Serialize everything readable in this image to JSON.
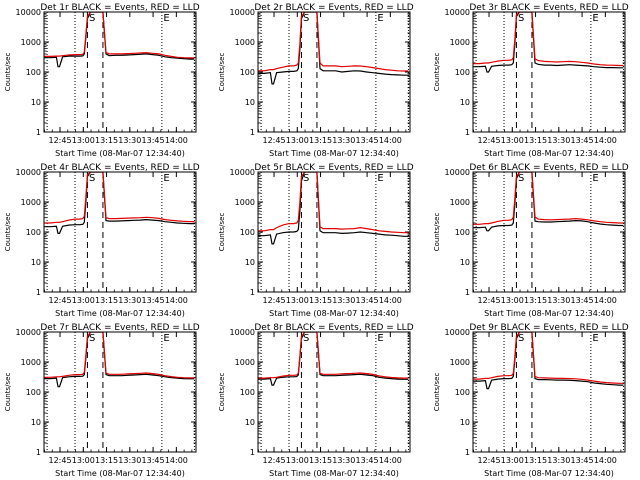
{
  "colors": {
    "events": "#000000",
    "lld": "#e00000",
    "frame": "#000000"
  },
  "panels": [
    {
      "title": "Det 1r BLACK = Events, RED = LLD",
      "ylabel": "Counts/sec",
      "xlabel": "Start Time (08-Mar-07 12:34:40)"
    },
    {
      "title": "Det 2r BLACK = Events, RED = LLD",
      "ylabel": "Counts/sec",
      "xlabel": "Start Time (08-Mar-07 12:34:40)"
    },
    {
      "title": "Det 3r BLACK = Events, RED = LLD",
      "ylabel": "Counts/sec",
      "xlabel": "Start Time (08-Mar-07 12:34:40)"
    },
    {
      "title": "Det 4r BLACK = Events, RED = LLD",
      "ylabel": "Counts/sec",
      "xlabel": "Start Time (08-Mar-07 12:34:40)"
    },
    {
      "title": "Det 5r BLACK = Events, RED = LLD",
      "ylabel": "Counts/sec",
      "xlabel": "Start Time (08-Mar-07 12:34:40)"
    },
    {
      "title": "Det 6r BLACK = Events, RED = LLD",
      "ylabel": "Counts/sec",
      "xlabel": "Start Time (08-Mar-07 12:34:40)"
    },
    {
      "title": "Det 7r BLACK = Events, RED = LLD",
      "ylabel": "Counts/sec",
      "xlabel": "Start Time (08-Mar-07 12:34:40)"
    },
    {
      "title": "Det 8r BLACK = Events, RED = LLD",
      "ylabel": "Counts/sec",
      "xlabel": "Start Time (08-Mar-07 12:34:40)"
    },
    {
      "title": "Det 9r BLACK = Events, RED = LLD",
      "ylabel": "Counts/sec",
      "xlabel": "Start Time (08-Mar-07 12:34:40)"
    }
  ],
  "chart_data": {
    "type": "line",
    "yscale": "log",
    "ylim": [
      1,
      10000
    ],
    "y_ticks": [
      1,
      10,
      100,
      1000,
      10000
    ],
    "y_tick_labels": [
      "1",
      "10",
      "100",
      "1000",
      "10000"
    ],
    "x_tick_labels": [
      "12:45",
      "13:00",
      "13:15",
      "13:30",
      "13:45",
      "14:00"
    ],
    "x_tick_minutes": [
      10.33,
      25.33,
      40.33,
      55.33,
      70.33,
      85.33
    ],
    "xlim_minutes": [
      0,
      98
    ],
    "dotted_vlines_minutes": [
      2,
      20,
      76,
      97
    ],
    "dashed_vlines_minutes": [
      28,
      38
    ],
    "marker_labels": [
      {
        "text": "S",
        "minute": 29
      },
      {
        "text": "E",
        "minute": 77
      }
    ],
    "x_minutes": [
      0,
      4,
      8,
      9,
      10,
      12,
      16,
      20,
      23,
      25,
      26,
      27,
      28,
      30,
      32,
      34,
      36,
      38,
      40,
      42,
      46,
      50,
      54,
      58,
      62,
      66,
      70,
      74,
      78,
      82,
      86,
      90,
      94,
      97
    ],
    "series": [
      {
        "name": "Events",
        "color": "#000000",
        "values_by_panel": [
          [
            300,
            300,
            310,
            150,
            150,
            320,
            340,
            340,
            340,
            345,
            400,
            1500,
            6000,
            12000,
            12000,
            12000,
            12000,
            12000,
            400,
            350,
            360,
            360,
            370,
            380,
            390,
            400,
            380,
            360,
            320,
            300,
            290,
            280,
            270,
            270
          ],
          [
            90,
            90,
            95,
            40,
            40,
            95,
            100,
            105,
            105,
            110,
            130,
            600,
            6000,
            12000,
            12000,
            12000,
            12000,
            12000,
            130,
            110,
            110,
            110,
            100,
            105,
            110,
            108,
            100,
            95,
            90,
            85,
            82,
            80,
            78,
            78
          ],
          [
            150,
            150,
            155,
            100,
            100,
            155,
            165,
            170,
            170,
            175,
            200,
            900,
            7000,
            12000,
            12000,
            12000,
            12000,
            12000,
            200,
            180,
            170,
            170,
            165,
            170,
            175,
            170,
            165,
            160,
            150,
            145,
            140,
            140,
            138,
            138
          ],
          [
            150,
            150,
            155,
            90,
            90,
            155,
            170,
            175,
            175,
            180,
            210,
            1000,
            7000,
            12000,
            12000,
            12000,
            12000,
            12000,
            240,
            230,
            230,
            235,
            240,
            245,
            250,
            260,
            250,
            240,
            220,
            210,
            200,
            195,
            190,
            190
          ],
          [
            75,
            75,
            80,
            40,
            40,
            85,
            95,
            100,
            100,
            105,
            120,
            500,
            5000,
            12000,
            12000,
            12000,
            12000,
            12000,
            110,
            95,
            95,
            95,
            90,
            92,
            95,
            100,
            95,
            90,
            85,
            80,
            78,
            75,
            72,
            72
          ],
          [
            140,
            140,
            145,
            110,
            110,
            145,
            160,
            165,
            165,
            170,
            200,
            900,
            6000,
            12000,
            12000,
            12000,
            12000,
            12000,
            230,
            220,
            215,
            215,
            220,
            225,
            230,
            240,
            235,
            220,
            200,
            185,
            175,
            170,
            165,
            165
          ],
          [
            280,
            280,
            290,
            150,
            150,
            300,
            320,
            330,
            330,
            335,
            380,
            1400,
            6000,
            12000,
            12000,
            12000,
            12000,
            12000,
            380,
            350,
            350,
            350,
            360,
            370,
            380,
            390,
            370,
            350,
            320,
            300,
            290,
            280,
            275,
            275
          ],
          [
            270,
            270,
            280,
            170,
            170,
            290,
            310,
            320,
            320,
            325,
            370,
            1400,
            6000,
            12000,
            12000,
            12000,
            12000,
            12000,
            380,
            350,
            350,
            350,
            360,
            370,
            380,
            390,
            370,
            350,
            310,
            290,
            280,
            270,
            265,
            265
          ],
          [
            230,
            230,
            240,
            130,
            130,
            250,
            270,
            280,
            280,
            285,
            330,
            1200,
            6000,
            12000,
            12000,
            12000,
            12000,
            12000,
            280,
            260,
            260,
            255,
            250,
            250,
            245,
            240,
            230,
            220,
            200,
            190,
            180,
            175,
            170,
            170
          ]
        ]
      },
      {
        "name": "LLD",
        "color": "#e00000",
        "values_by_panel": [
          [
            330,
            330,
            340,
            340,
            340,
            350,
            370,
            380,
            380,
            390,
            450,
            1800,
            7000,
            12000,
            12000,
            12000,
            12000,
            12000,
            450,
            400,
            400,
            400,
            410,
            420,
            430,
            440,
            420,
            400,
            360,
            330,
            310,
            300,
            295,
            295
          ],
          [
            110,
            110,
            120,
            120,
            120,
            130,
            145,
            160,
            160,
            170,
            200,
            900,
            7000,
            12000,
            12000,
            12000,
            12000,
            12000,
            200,
            160,
            160,
            160,
            150,
            155,
            160,
            158,
            150,
            140,
            130,
            120,
            115,
            110,
            108,
            108
          ],
          [
            190,
            190,
            200,
            200,
            200,
            210,
            230,
            245,
            245,
            255,
            300,
            1300,
            8000,
            12000,
            12000,
            12000,
            12000,
            12000,
            280,
            240,
            225,
            220,
            215,
            220,
            225,
            220,
            210,
            200,
            185,
            175,
            170,
            168,
            165,
            165
          ],
          [
            200,
            200,
            210,
            210,
            210,
            220,
            250,
            270,
            270,
            280,
            330,
            1500,
            8000,
            12000,
            12000,
            12000,
            12000,
            12000,
            300,
            280,
            280,
            285,
            290,
            295,
            300,
            310,
            300,
            285,
            260,
            245,
            235,
            228,
            222,
            222
          ],
          [
            110,
            110,
            120,
            120,
            120,
            140,
            170,
            190,
            190,
            200,
            240,
            1000,
            7000,
            12000,
            12000,
            12000,
            12000,
            12000,
            150,
            130,
            130,
            130,
            125,
            128,
            130,
            140,
            130,
            120,
            110,
            105,
            100,
            98,
            95,
            95
          ],
          [
            180,
            180,
            190,
            190,
            190,
            200,
            225,
            245,
            245,
            260,
            310,
            1400,
            7000,
            12000,
            12000,
            12000,
            12000,
            12000,
            320,
            270,
            260,
            255,
            260,
            265,
            270,
            280,
            270,
            255,
            235,
            220,
            210,
            205,
            200,
            200
          ],
          [
            310,
            310,
            320,
            320,
            320,
            330,
            360,
            380,
            380,
            390,
            450,
            1700,
            7000,
            12000,
            12000,
            12000,
            12000,
            12000,
            430,
            390,
            390,
            390,
            400,
            410,
            420,
            430,
            410,
            385,
            350,
            325,
            310,
            300,
            295,
            295
          ],
          [
            290,
            290,
            300,
            300,
            300,
            310,
            340,
            360,
            360,
            370,
            420,
            1600,
            7000,
            12000,
            12000,
            12000,
            12000,
            12000,
            420,
            390,
            390,
            390,
            400,
            410,
            420,
            430,
            410,
            385,
            345,
            320,
            305,
            295,
            290,
            290
          ],
          [
            270,
            270,
            285,
            285,
            285,
            300,
            330,
            350,
            350,
            360,
            420,
            1600,
            7000,
            12000,
            12000,
            12000,
            12000,
            12000,
            330,
            300,
            295,
            290,
            285,
            285,
            280,
            275,
            265,
            250,
            230,
            215,
            205,
            200,
            195,
            195
          ]
        ]
      }
    ]
  }
}
